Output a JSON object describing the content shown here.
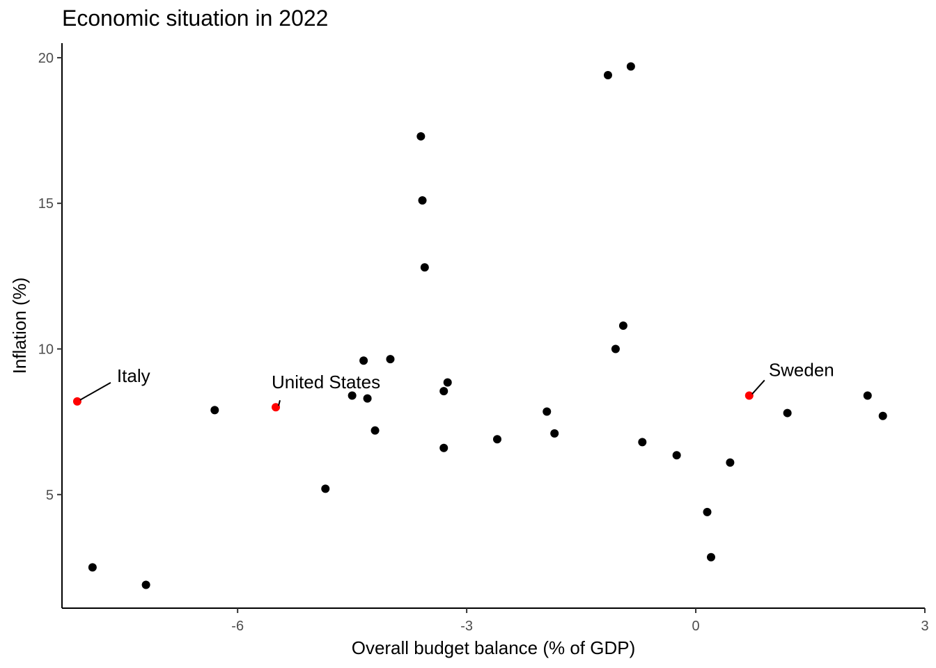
{
  "chart_data": {
    "type": "scatter",
    "title": "Economic situation in 2022",
    "xlabel": "Overall budget balance (% of GDP)",
    "ylabel": "Inflation (%)",
    "xlim": [
      -8.3,
      3.0
    ],
    "ylim": [
      1.1,
      20.5
    ],
    "xticks": [
      -6,
      -3,
      0,
      3
    ],
    "yticks": [
      5,
      10,
      15,
      20
    ],
    "grid": false,
    "legend": "none",
    "colors": {
      "default": "#000000",
      "highlight": "#ff0000"
    },
    "points": [
      {
        "x": -8.1,
        "y": 8.2,
        "highlight": true,
        "label": "Italy"
      },
      {
        "x": -5.5,
        "y": 8.0,
        "highlight": true,
        "label": "United States"
      },
      {
        "x": 0.7,
        "y": 8.4,
        "highlight": true,
        "label": "Sweden"
      },
      {
        "x": -7.9,
        "y": 2.5
      },
      {
        "x": -7.2,
        "y": 1.9
      },
      {
        "x": -6.3,
        "y": 7.9
      },
      {
        "x": -4.85,
        "y": 5.2
      },
      {
        "x": -4.5,
        "y": 8.4
      },
      {
        "x": -4.35,
        "y": 9.6
      },
      {
        "x": -4.3,
        "y": 8.3
      },
      {
        "x": -4.2,
        "y": 7.2
      },
      {
        "x": -4.0,
        "y": 9.65
      },
      {
        "x": -3.6,
        "y": 17.3
      },
      {
        "x": -3.58,
        "y": 15.1
      },
      {
        "x": -3.55,
        "y": 12.8
      },
      {
        "x": -3.3,
        "y": 8.55
      },
      {
        "x": -3.3,
        "y": 6.6
      },
      {
        "x": -3.25,
        "y": 8.85
      },
      {
        "x": -2.6,
        "y": 6.9
      },
      {
        "x": -1.95,
        "y": 7.85
      },
      {
        "x": -1.85,
        "y": 7.1
      },
      {
        "x": -1.15,
        "y": 19.4
      },
      {
        "x": -0.85,
        "y": 19.7
      },
      {
        "x": -1.05,
        "y": 10.0
      },
      {
        "x": -0.95,
        "y": 10.8
      },
      {
        "x": -0.7,
        "y": 6.8
      },
      {
        "x": -0.25,
        "y": 6.35
      },
      {
        "x": 0.15,
        "y": 4.4
      },
      {
        "x": 0.2,
        "y": 2.85
      },
      {
        "x": 0.45,
        "y": 6.1
      },
      {
        "x": 1.2,
        "y": 7.8
      },
      {
        "x": 2.25,
        "y": 8.4
      },
      {
        "x": 2.45,
        "y": 7.7
      }
    ]
  }
}
